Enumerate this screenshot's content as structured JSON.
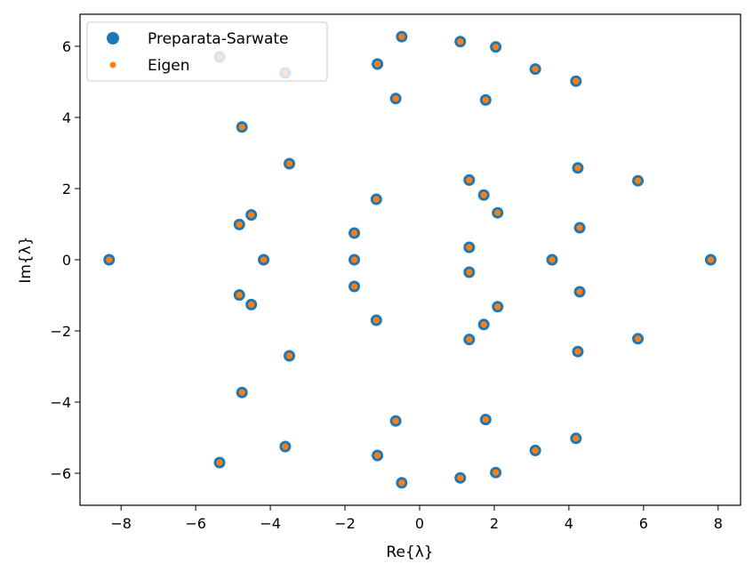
{
  "chart_data": {
    "type": "scatter",
    "title": "",
    "xlabel": "Re{λ}",
    "ylabel": "Im{λ}",
    "xlim": [
      -9.1,
      8.6
    ],
    "ylim": [
      -6.9,
      6.9
    ],
    "xticks": [
      -8,
      -6,
      -4,
      -2,
      0,
      2,
      4,
      6,
      8
    ],
    "yticks": [
      -6,
      -4,
      -2,
      0,
      2,
      4,
      6
    ],
    "xtick_labels": [
      "−8",
      "−6",
      "−4",
      "−2",
      "0",
      "2",
      "4",
      "6",
      "8"
    ],
    "ytick_labels": [
      "−6",
      "−4",
      "−2",
      "0",
      "2",
      "4",
      "6"
    ],
    "grid": false,
    "legend_position": "top-left",
    "series": [
      {
        "name": "Preparata-Sarwate",
        "color": "#1f77b4",
        "marker": "large-circle"
      },
      {
        "name": "Eigen",
        "color": "#ff7f0e",
        "marker": "small-circle"
      }
    ],
    "points": [
      [
        -8.32,
        0.0
      ],
      [
        -5.36,
        5.7
      ],
      [
        -5.36,
        -5.7
      ],
      [
        -3.6,
        5.25
      ],
      [
        -3.6,
        -5.25
      ],
      [
        -4.76,
        3.73
      ],
      [
        -4.76,
        -3.73
      ],
      [
        -3.49,
        2.7
      ],
      [
        -3.49,
        -2.7
      ],
      [
        -4.83,
        0.99
      ],
      [
        -4.83,
        -0.99
      ],
      [
        -4.51,
        1.26
      ],
      [
        -4.51,
        -1.26
      ],
      [
        -4.18,
        0.0
      ],
      [
        -1.75,
        0.75
      ],
      [
        -1.75,
        -0.75
      ],
      [
        -1.75,
        0.0
      ],
      [
        -1.16,
        1.7
      ],
      [
        -1.16,
        -1.7
      ],
      [
        -1.13,
        5.5
      ],
      [
        -1.13,
        -5.5
      ],
      [
        -0.64,
        4.53
      ],
      [
        -0.64,
        -4.53
      ],
      [
        -0.48,
        6.27
      ],
      [
        -0.48,
        -6.27
      ],
      [
        1.09,
        6.13
      ],
      [
        1.09,
        -6.13
      ],
      [
        2.04,
        5.98
      ],
      [
        2.04,
        -5.98
      ],
      [
        1.77,
        4.49
      ],
      [
        1.77,
        -4.49
      ],
      [
        1.33,
        2.24
      ],
      [
        1.33,
        -2.24
      ],
      [
        1.72,
        1.82
      ],
      [
        1.72,
        -1.82
      ],
      [
        2.09,
        1.32
      ],
      [
        2.09,
        -1.32
      ],
      [
        1.33,
        0.35
      ],
      [
        1.33,
        -0.35
      ],
      [
        3.1,
        5.36
      ],
      [
        3.1,
        -5.36
      ],
      [
        4.19,
        5.02
      ],
      [
        4.19,
        -5.02
      ],
      [
        4.24,
        2.58
      ],
      [
        4.24,
        -2.58
      ],
      [
        4.29,
        0.9
      ],
      [
        4.29,
        -0.9
      ],
      [
        3.55,
        0.0
      ],
      [
        5.85,
        2.22
      ],
      [
        5.85,
        -2.22
      ],
      [
        7.8,
        0.0
      ]
    ]
  }
}
